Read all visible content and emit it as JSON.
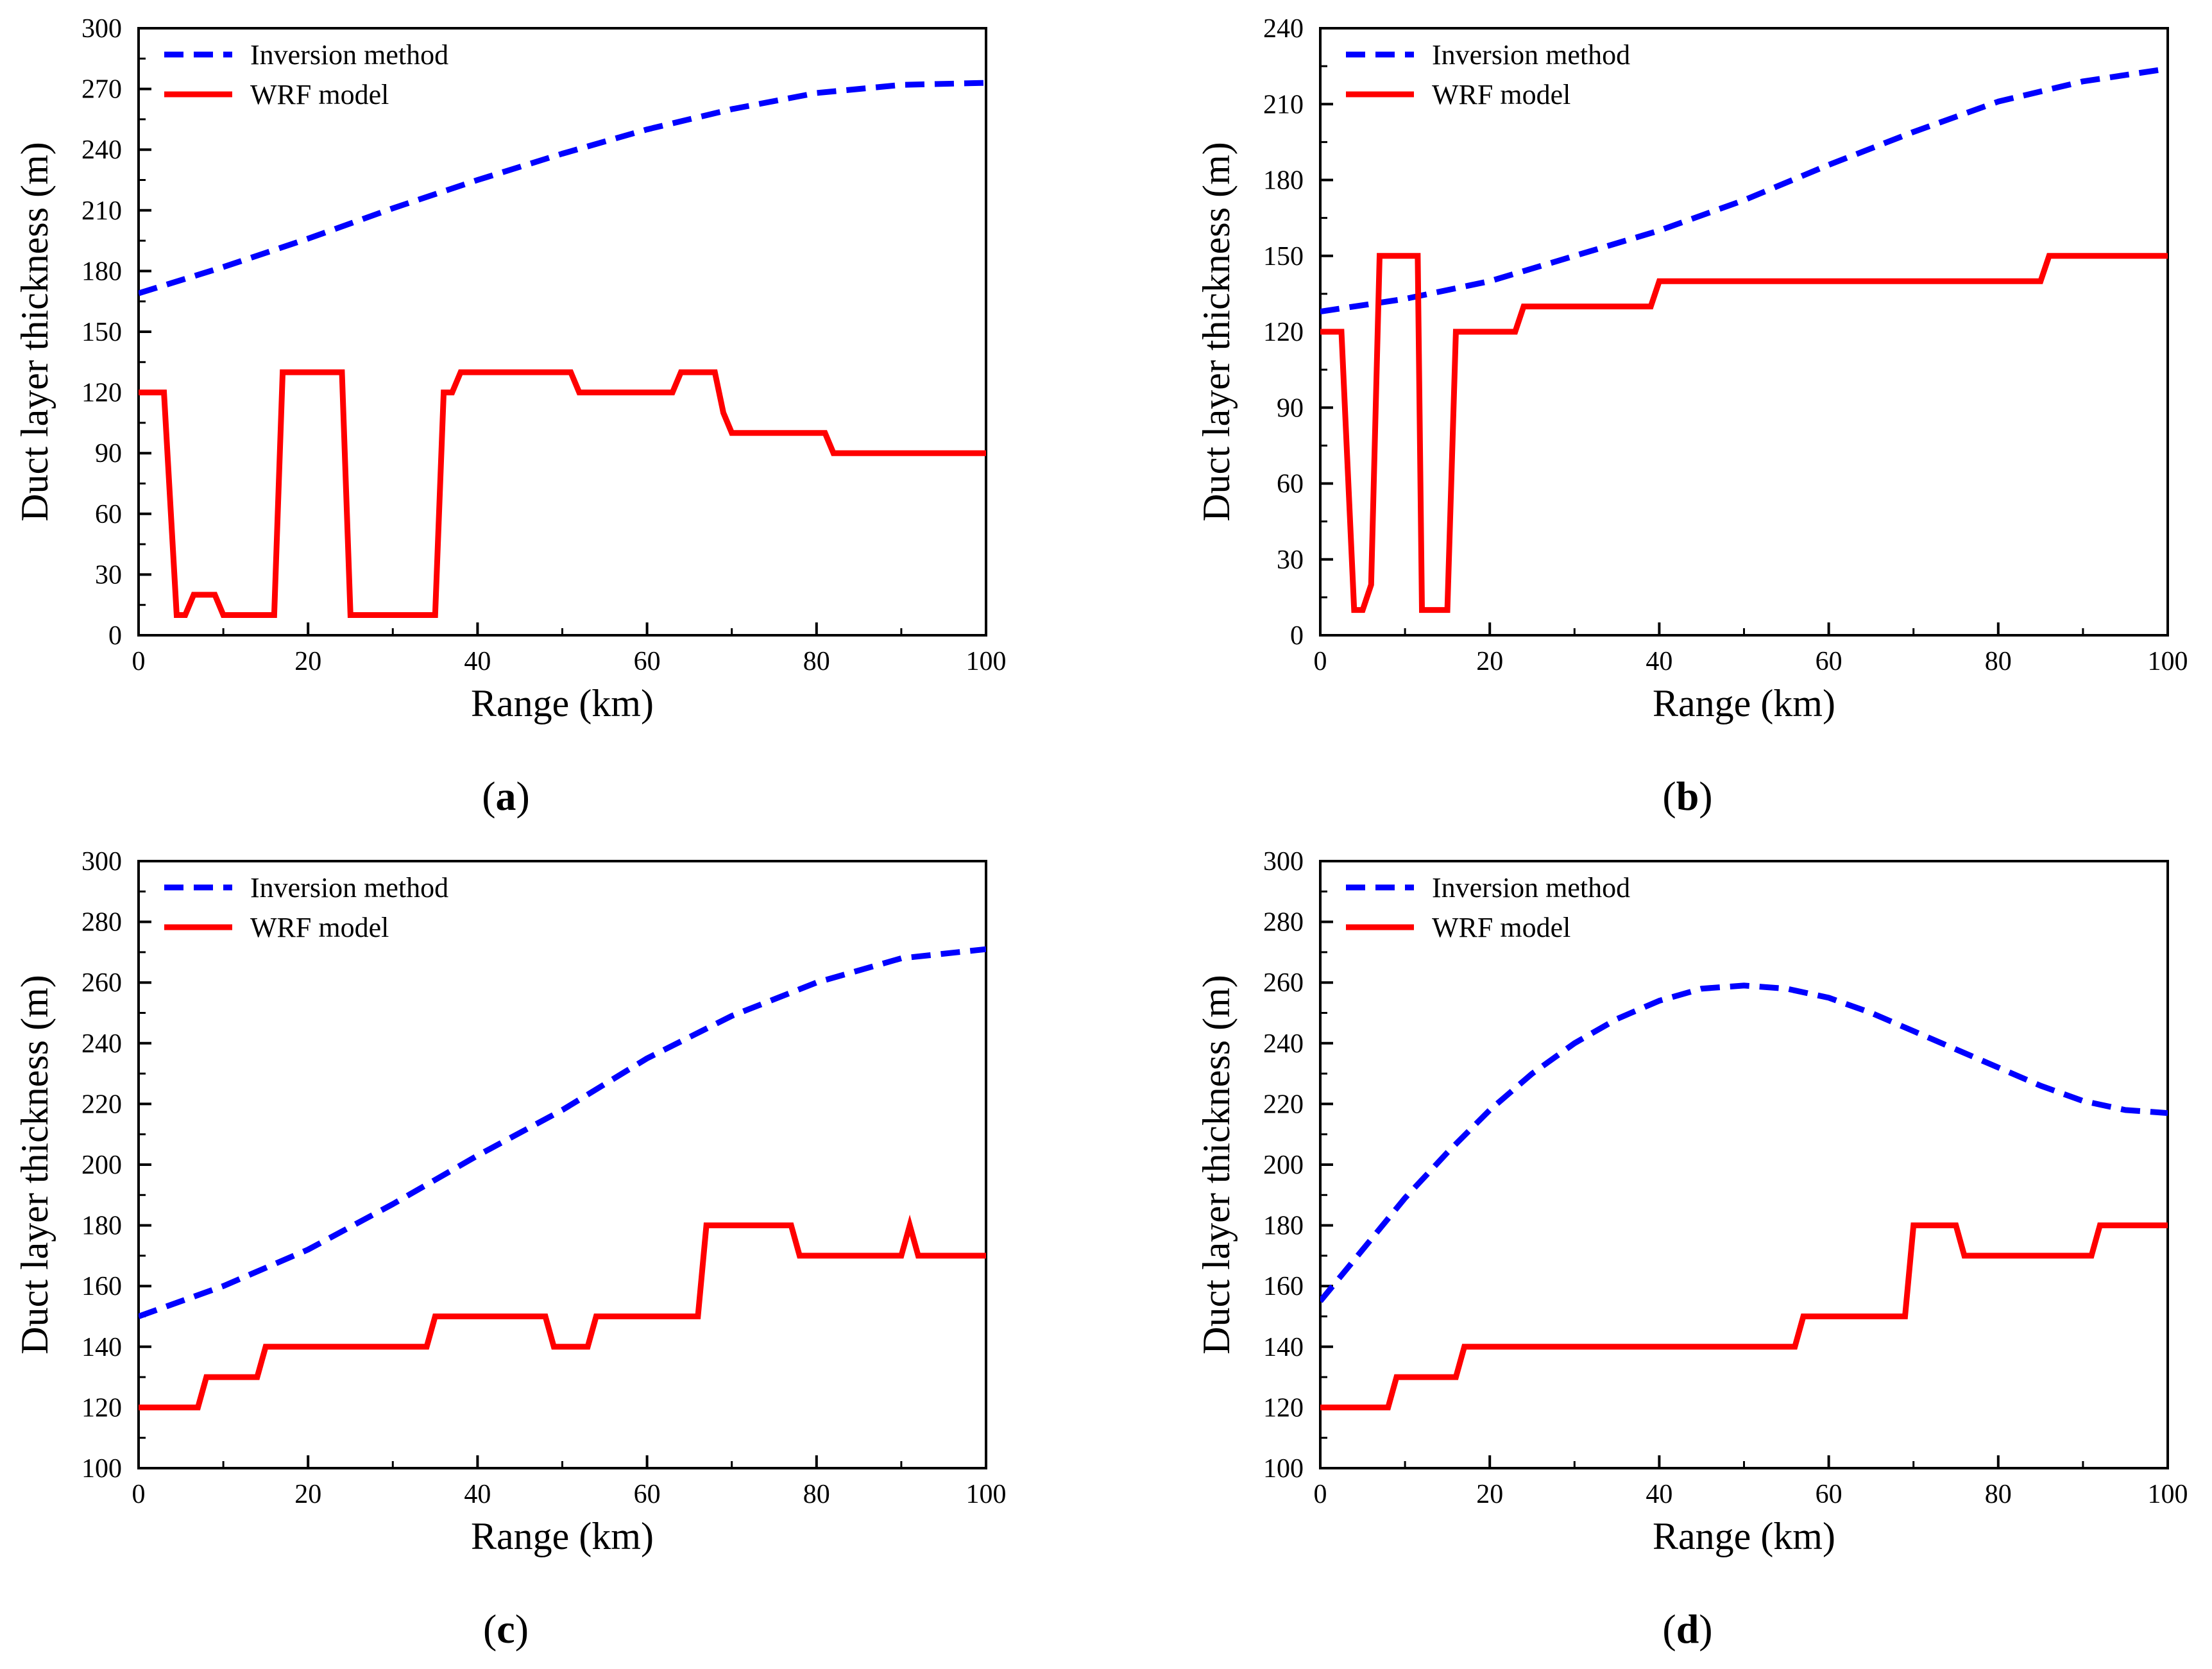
{
  "chart_data": [
    {
      "type": "line",
      "panel_label": "(a)",
      "xlabel": "Range (km)",
      "ylabel": "Duct layer thickness (m)",
      "xlim": [
        0,
        100
      ],
      "ylim": [
        0,
        300
      ],
      "xticks": [
        0,
        20,
        40,
        60,
        80,
        100
      ],
      "yticks": [
        0,
        30,
        60,
        90,
        120,
        150,
        180,
        210,
        240,
        270,
        300
      ],
      "legend_position": "top-left",
      "series": [
        {
          "name": "Inversion method",
          "color": "#0000ff",
          "style": "dashed",
          "x": [
            0,
            10,
            20,
            30,
            40,
            50,
            60,
            70,
            80,
            90,
            100
          ],
          "y": [
            169,
            182,
            196,
            211,
            225,
            238,
            250,
            260,
            268,
            272,
            273
          ]
        },
        {
          "name": "WRF model",
          "color": "#ff0000",
          "style": "solid",
          "x": [
            0,
            3,
            4.5,
            5.5,
            6.5,
            9,
            10,
            16,
            17,
            24,
            25,
            35,
            36,
            37,
            38,
            51,
            52,
            63,
            64,
            68,
            69,
            70,
            81,
            82,
            100
          ],
          "y": [
            120,
            120,
            10,
            10,
            20,
            20,
            10,
            10,
            130,
            130,
            10,
            10,
            120,
            120,
            130,
            130,
            120,
            120,
            130,
            130,
            110,
            100,
            100,
            90,
            90
          ]
        }
      ]
    },
    {
      "type": "line",
      "panel_label": "(b)",
      "xlabel": "Range (km)",
      "ylabel": "Duct layer thickness (m)",
      "xlim": [
        0,
        100
      ],
      "ylim": [
        0,
        240
      ],
      "xticks": [
        0,
        20,
        40,
        60,
        80,
        100
      ],
      "yticks": [
        0,
        30,
        60,
        90,
        120,
        150,
        180,
        210,
        240
      ],
      "legend_position": "top-left",
      "series": [
        {
          "name": "Inversion method",
          "color": "#0000ff",
          "style": "dashed",
          "x": [
            0,
            10,
            20,
            30,
            40,
            50,
            60,
            70,
            80,
            90,
            100
          ],
          "y": [
            128,
            133,
            140,
            150,
            160,
            172,
            186,
            199,
            211,
            219,
            224
          ]
        },
        {
          "name": "WRF model",
          "color": "#ff0000",
          "style": "solid",
          "x": [
            0,
            2.5,
            4,
            5,
            6,
            7,
            10.5,
            11.5,
            12,
            15,
            16,
            23,
            24,
            39,
            40,
            85,
            86,
            100
          ],
          "y": [
            120,
            120,
            10,
            10,
            20,
            150,
            150,
            150,
            10,
            10,
            120,
            120,
            130,
            130,
            140,
            140,
            150,
            150
          ]
        }
      ]
    },
    {
      "type": "line",
      "panel_label": "(c)",
      "xlabel": "Range (km)",
      "ylabel": "Duct layer thickness (m)",
      "xlim": [
        0,
        100
      ],
      "ylim": [
        100,
        300
      ],
      "xticks": [
        0,
        20,
        40,
        60,
        80,
        100
      ],
      "yticks": [
        100,
        120,
        140,
        160,
        180,
        200,
        220,
        240,
        260,
        280,
        300
      ],
      "legend_position": "top-left",
      "series": [
        {
          "name": "Inversion method",
          "color": "#0000ff",
          "style": "dashed",
          "x": [
            0,
            10,
            20,
            30,
            40,
            50,
            60,
            70,
            80,
            90,
            100
          ],
          "y": [
            150,
            160,
            172,
            187,
            203,
            218,
            235,
            249,
            260,
            268,
            271
          ]
        },
        {
          "name": "WRF model",
          "color": "#ff0000",
          "style": "solid",
          "x": [
            0,
            7,
            8,
            14,
            15,
            34,
            35,
            48,
            49,
            53,
            54,
            66,
            67,
            77,
            78,
            90,
            91,
            92,
            100
          ],
          "y": [
            120,
            120,
            130,
            130,
            140,
            140,
            150,
            150,
            140,
            140,
            150,
            150,
            180,
            180,
            170,
            170,
            180,
            170,
            170
          ]
        }
      ]
    },
    {
      "type": "line",
      "panel_label": "(d)",
      "xlabel": "Range (km)",
      "ylabel": "Duct layer thickness (m)",
      "xlim": [
        0,
        100
      ],
      "ylim": [
        100,
        300
      ],
      "xticks": [
        0,
        20,
        40,
        60,
        80,
        100
      ],
      "yticks": [
        100,
        120,
        140,
        160,
        180,
        200,
        220,
        240,
        260,
        280,
        300
      ],
      "legend_position": "top-left",
      "series": [
        {
          "name": "Inversion method",
          "color": "#0000ff",
          "style": "dashed",
          "x": [
            0,
            5,
            10,
            15,
            20,
            25,
            30,
            35,
            40,
            45,
            50,
            55,
            60,
            65,
            70,
            75,
            80,
            85,
            90,
            95,
            100
          ],
          "y": [
            155,
            172,
            189,
            204,
            218,
            230,
            240,
            248,
            254,
            258,
            259,
            258,
            255,
            250,
            244,
            238,
            232,
            226,
            221,
            218,
            217
          ]
        },
        {
          "name": "WRF model",
          "color": "#ff0000",
          "style": "solid",
          "x": [
            0,
            8,
            9,
            16,
            17,
            56,
            57,
            69,
            70,
            75,
            76,
            91,
            92,
            100
          ],
          "y": [
            120,
            120,
            130,
            130,
            140,
            140,
            150,
            150,
            180,
            180,
            170,
            170,
            180,
            180
          ]
        }
      ]
    }
  ]
}
